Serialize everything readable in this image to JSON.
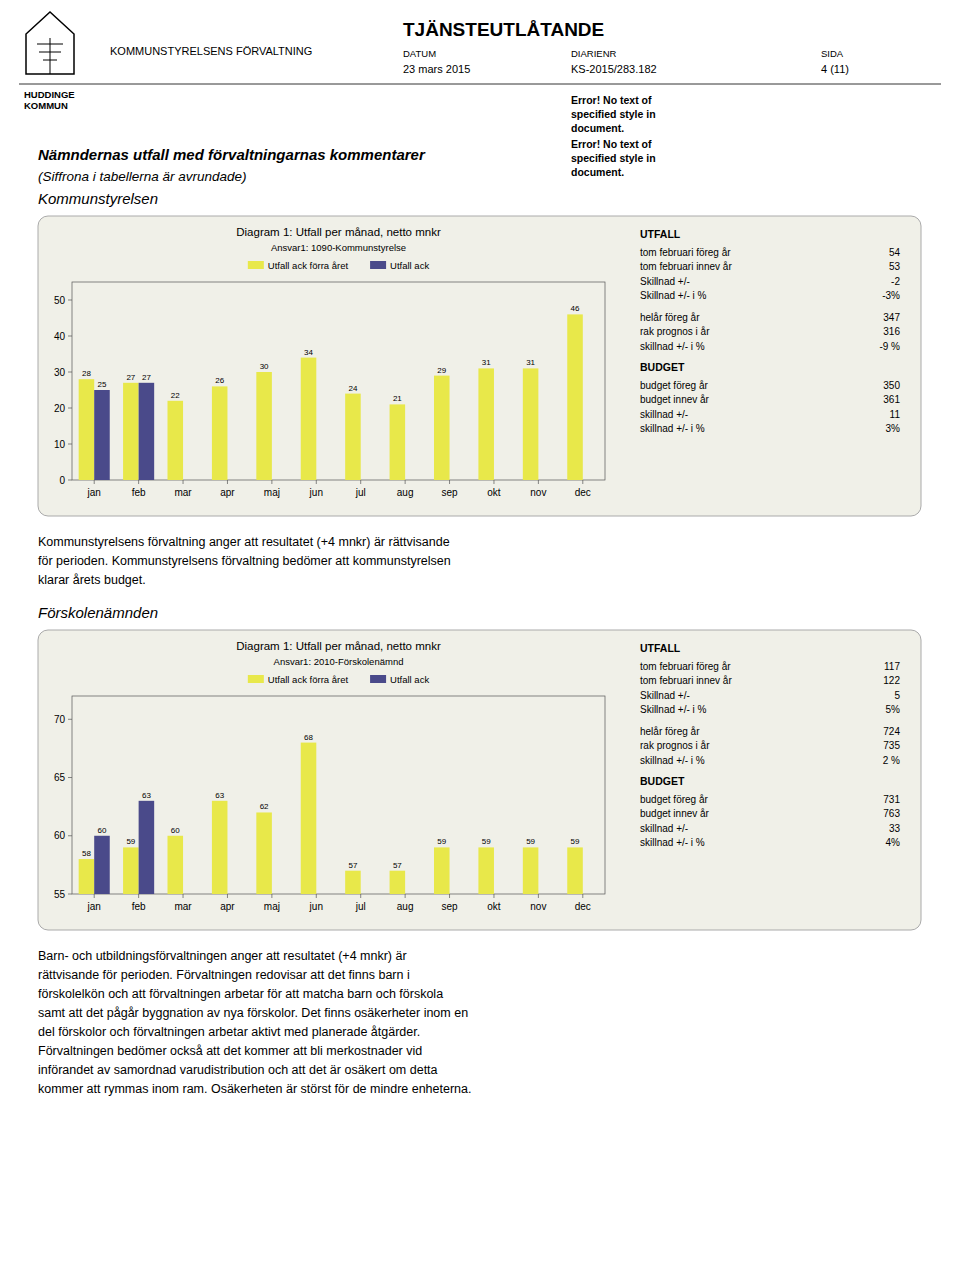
{
  "header": {
    "logo_text": [
      "HUDDINGE",
      "KOMMUN"
    ],
    "page_title": "KOMMUNSTYRELSENS FÖRVALTNING",
    "doc_title": "TJÄNSTEUTLÅTANDE",
    "datum_label": "DATUM",
    "datum_value": "23 mars 2015",
    "diarienr_label": "DIARIENR",
    "diarienr_value": "KS-2015/283.182",
    "sida_label": "SIDA",
    "sida_value": "4 (11)",
    "error_texts": [
      "Error! No text of\nspecified style in\ndocument.",
      "Error! No text of\nspecified style in\ndocument."
    ]
  },
  "headings": {
    "heading1": "Nämndernas utfall med förvaltningarnas kommentarer",
    "heading2": "(Siffrona i tabellerna är avrundade)"
  },
  "sections": [
    {
      "title": "Kommunstyrelsen",
      "text": "Kommunstyrelsens förvaltning anger att resultatet (+4 mnkr) är rättvisande\nför perioden. Kommunstyrelsens förvaltning bedömer att kommunstyrelsen\nklarar årets budget.",
      "stats": {
        "utfall_label": "UTFALL",
        "utfall": [
          [
            "tom februari föreg år",
            "54"
          ],
          [
            "tom februari innev år",
            "53"
          ],
          [
            "Skillnad +/-",
            "-2"
          ],
          [
            "Skillnad +/- i %",
            "-3%"
          ]
        ],
        "helar": [
          [
            "helår föreg år",
            "347"
          ],
          [
            "rak prognos i år",
            "316"
          ],
          [
            "skillnad +/- i %",
            "-9 %"
          ]
        ],
        "budget_label": "BUDGET",
        "budget": [
          [
            "budget föreg år",
            "350"
          ],
          [
            "budget innev år",
            "361"
          ],
          [
            "skillnad +/-",
            "11"
          ],
          [
            "skillnad +/- i %",
            "3%"
          ]
        ]
      }
    },
    {
      "title": "Förskolenämnden",
      "text": "Barn- och utbildningsförvaltningen anger att resultatet (+4 mnkr) är\nrättvisande för perioden. Förvaltningen redovisar att det finns barn i\nförskolelkön och att förvaltningen arbetar för att matcha barn och förskola\nsamt att det pågår byggnation av nya förskolor. Det finns osäkerheter inom en\ndel förskolor och förvaltningen arbetar aktivt med planerade åtgärder.\nFörvaltningen bedömer också att det kommer att bli merkostnader vid\ninförandet av samordnad varudistribution och att det är osäkert om detta\nkommer att rymmas inom ram. Osäkerheten är störst för de mindre enheterna.",
      "stats": {
        "utfall_label": "UTFALL",
        "utfall": [
          [
            "tom februari föreg år",
            "117"
          ],
          [
            "tom februari innev år",
            "122"
          ],
          [
            "Skillnad +/-",
            "5"
          ],
          [
            "Skillnad +/- i %",
            "5%"
          ]
        ],
        "helar": [
          [
            "helår föreg år",
            "724"
          ],
          [
            "rak prognos i år",
            "735"
          ],
          [
            "skillnad +/- i %",
            "2 %"
          ]
        ],
        "budget_label": "BUDGET",
        "budget": [
          [
            "budget föreg år",
            "731"
          ],
          [
            "budget innev år",
            "763"
          ],
          [
            "skillnad +/-",
            "33"
          ],
          [
            "skillnad +/- i %",
            "4%"
          ]
        ]
      }
    }
  ],
  "chart_data": [
    {
      "type": "bar",
      "title": "Diagram 1: Utfall per månad, netto mnkr",
      "subtitle": "Ansvar1: 1090-Kommunstyrelse",
      "categories": [
        "jan",
        "feb",
        "mar",
        "apr",
        "maj",
        "jun",
        "jul",
        "aug",
        "sep",
        "okt",
        "nov",
        "dec"
      ],
      "series": [
        {
          "name": "Utfall ack förra året",
          "color": "#e8e84a",
          "values": [
            28,
            27,
            22,
            26,
            30,
            34,
            24,
            21,
            29,
            31,
            31,
            46
          ]
        },
        {
          "name": "Utfall ack",
          "color": "#4a4a8a",
          "values": [
            25,
            27,
            null,
            null,
            null,
            null,
            null,
            null,
            null,
            null,
            null,
            null
          ]
        }
      ],
      "ylim": [
        0,
        55
      ],
      "yticks": [
        0,
        10,
        20,
        30,
        40,
        50
      ],
      "data_labels": true,
      "grid": false,
      "legend": "top"
    },
    {
      "type": "bar",
      "title": "Diagram 1: Utfall per månad, netto mnkr",
      "subtitle": "Ansvar1: 2010-Förskolenämnd",
      "categories": [
        "jan",
        "feb",
        "mar",
        "apr",
        "maj",
        "jun",
        "jul",
        "aug",
        "sep",
        "okt",
        "nov",
        "dec"
      ],
      "series": [
        {
          "name": "Utfall ack förra året",
          "color": "#e8e84a",
          "values": [
            58,
            59,
            60,
            63,
            62,
            68,
            57,
            57,
            59,
            59,
            59,
            59
          ]
        },
        {
          "name": "Utfall ack",
          "color": "#4a4a8a",
          "values": [
            60,
            63,
            null,
            null,
            null,
            null,
            null,
            null,
            null,
            null,
            null,
            null
          ]
        }
      ],
      "ylim": [
        55,
        72
      ],
      "yticks": [
        55,
        60,
        65,
        70
      ],
      "data_labels": true,
      "grid": false,
      "legend": "top"
    }
  ]
}
